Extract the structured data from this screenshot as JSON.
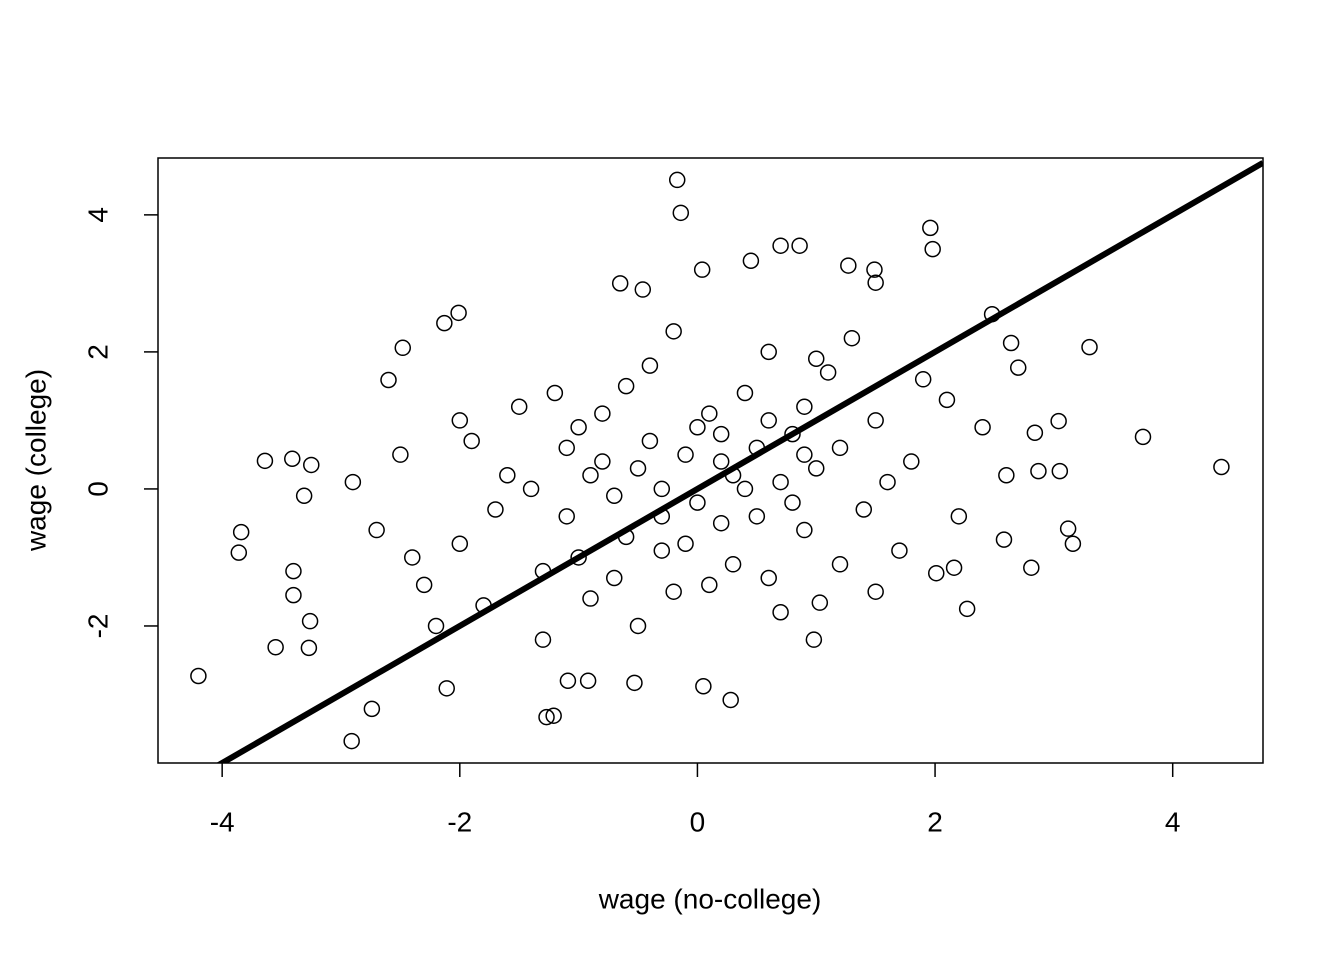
{
  "chart_data": {
    "type": "scatter",
    "xlabel": "wage (no-college)",
    "ylabel": "wage (college)",
    "xlim": [
      -4.54,
      4.76
    ],
    "ylim": [
      -4.0,
      4.83
    ],
    "xticks": [
      -4,
      -2,
      0,
      2,
      4
    ],
    "yticks": [
      -2,
      0,
      2,
      4
    ],
    "color": "#000000",
    "abline": {
      "intercept": 0,
      "slope": 1
    },
    "x": [
      -4.2,
      -0.17,
      -0.14,
      4.41,
      3.75,
      3.3,
      1.96,
      1.98,
      -2.91,
      -2.74,
      -3.64,
      -3.84,
      -3.86,
      -3.55,
      -3.27,
      -3.26,
      -3.4,
      -3.4,
      -3.41,
      -3.25,
      -3.31,
      -2.48,
      -2.6,
      -2.01,
      -2.13,
      -1.27,
      -1.21,
      0.28,
      0.05,
      -2.11,
      -0.53,
      -1.09,
      -0.92,
      2.81,
      2.58,
      3.12,
      3.16,
      3.04,
      3.05,
      2.87,
      2.84,
      2.27,
      2.16,
      2.01,
      0.98,
      1.03,
      0.7,
      0.86,
      0.45,
      0.04,
      1.27,
      1.49,
      1.5,
      -0.65,
      -0.46,
      2.48,
      2.7,
      2.64,
      -0.5,
      0.2,
      -1.1,
      0.7,
      -0.3,
      1.2,
      -1.6,
      0.4,
      -0.8,
      0.0,
      0.9,
      -1.3,
      1.5,
      -0.1,
      0.6,
      -0.7,
      1.8,
      -2.0,
      0.3,
      -0.4,
      1.1,
      -1.9,
      0.8,
      -0.2,
      2.1,
      -1.0,
      0.5,
      -0.6,
      1.4,
      -2.3,
      0.1,
      -1.4,
      0.9,
      -0.9,
      1.7,
      -0.3,
      0.2,
      -1.2,
      2.4,
      -2.5,
      0.6,
      -0.5,
      1.0,
      -1.7,
      0.3,
      -0.8,
      1.3,
      -2.2,
      0.0,
      -0.1,
      1.9,
      -1.5,
      0.7,
      -0.4,
      2.2,
      -2.7,
      0.4,
      -1.0,
      1.6,
      -0.2,
      0.8,
      -1.8,
      0.1,
      -0.6,
      1.2,
      -2.9,
      0.5,
      -1.1,
      2.6,
      -0.7,
      1.0,
      -2.0,
      0.2,
      -0.3,
      1.5,
      -1.3,
      0.9,
      -2.4,
      0.6,
      -0.9
    ],
    "y": [
      -2.73,
      4.51,
      4.03,
      0.32,
      0.76,
      2.07,
      3.81,
      3.5,
      -3.68,
      -3.21,
      0.41,
      -0.63,
      -0.93,
      -2.31,
      -2.32,
      -1.93,
      -1.55,
      -1.2,
      0.44,
      0.35,
      -0.1,
      2.06,
      1.59,
      2.57,
      2.42,
      -3.33,
      -3.31,
      -3.08,
      -2.88,
      -2.91,
      -2.83,
      -2.8,
      -2.8,
      -1.15,
      -0.74,
      -0.58,
      -0.8,
      0.99,
      0.26,
      0.26,
      0.82,
      -1.75,
      -1.15,
      -1.23,
      -2.2,
      -1.66,
      3.55,
      3.55,
      3.33,
      3.2,
      3.26,
      3.2,
      3.01,
      3.0,
      2.91,
      2.55,
      1.77,
      2.13,
      0.3,
      0.8,
      -0.4,
      0.1,
      -0.9,
      0.6,
      0.2,
      1.4,
      1.1,
      -0.2,
      -0.6,
      -1.2,
      1.0,
      0.5,
      -1.3,
      -0.1,
      0.4,
      -0.8,
      0.2,
      1.8,
      1.7,
      0.7,
      -0.2,
      -1.5,
      1.3,
      0.9,
      0.6,
      -0.7,
      -0.3,
      -1.4,
      1.1,
      0.0,
      1.2,
      -1.6,
      -0.9,
      0.0,
      -0.5,
      1.4,
      0.9,
      0.5,
      2.0,
      -2.0,
      0.3,
      -0.3,
      -1.1,
      0.4,
      2.2,
      -2.0,
      0.9,
      -0.8,
      1.6,
      1.2,
      -1.8,
      0.7,
      -0.4,
      -0.6,
      0.0,
      -1.0,
      0.1,
      2.3,
      0.8,
      -1.7,
      -1.4,
      1.5,
      -1.1,
      0.1,
      -0.4,
      0.6,
      0.2,
      -1.3,
      1.9,
      1.0,
      0.4,
      -0.4,
      -1.5,
      -2.2,
      0.5,
      -1.0,
      1.0,
      0.2
    ]
  }
}
